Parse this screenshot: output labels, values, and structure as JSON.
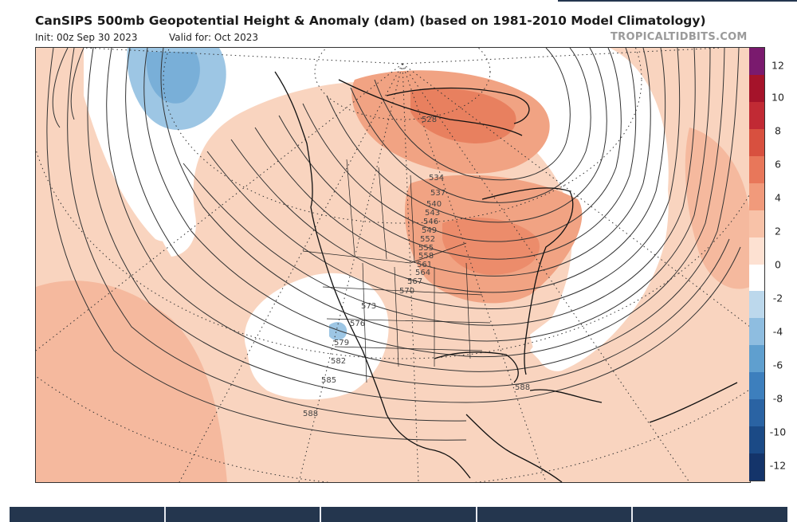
{
  "header": {
    "title": "CanSIPS 500mb Geopotential Height & Anomaly (dam) (based on 1981-2010 Model Climatology)",
    "init": "Init: 00z Sep 30 2023",
    "valid": "Valid for: Oct 2023",
    "site": "TROPICALTIDBITS.COM"
  },
  "colorbar": {
    "labels": [
      "12",
      "10",
      "8",
      "6",
      "4",
      "2",
      "0",
      "-2",
      "-4",
      "-6",
      "-8",
      "-10",
      "-12"
    ],
    "colors": [
      "#7a1a6e",
      "#a5132a",
      "#c12a34",
      "#d8503f",
      "#e8775a",
      "#f19a7b",
      "#f8c2a8",
      "#fde1d2",
      "#ffffff",
      "#bcd8ec",
      "#8ebde0",
      "#5f9fcf",
      "#3d7fbd",
      "#2a63a3",
      "#1b4a86",
      "#14346a"
    ]
  },
  "contours": {
    "labels": [
      "528",
      "534",
      "537",
      "540",
      "543",
      "546",
      "549",
      "552",
      "555",
      "558",
      "561",
      "564",
      "567",
      "570",
      "573",
      "576",
      "579",
      "582",
      "585",
      "588",
      "588"
    ]
  },
  "bottom_bar": {
    "tabs": [
      "",
      "",
      "",
      "",
      ""
    ]
  }
}
